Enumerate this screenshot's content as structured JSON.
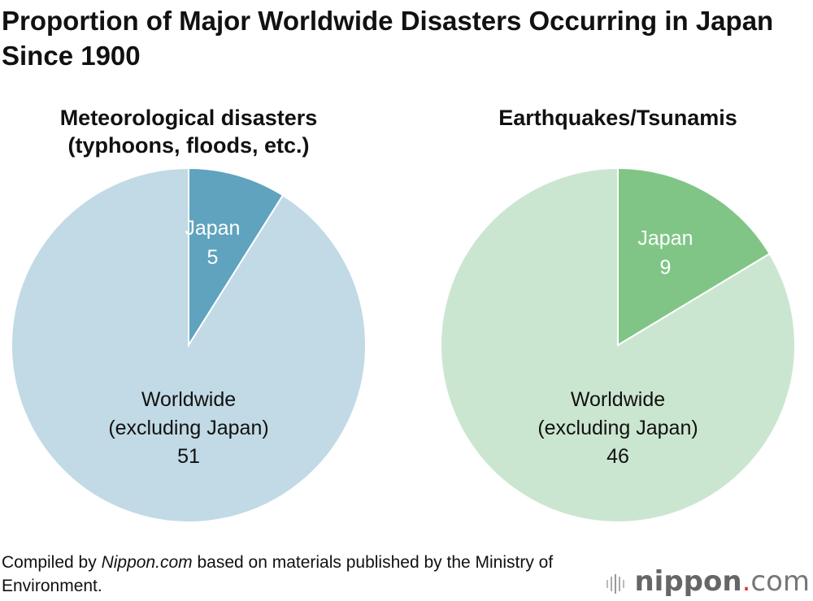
{
  "title": "Proportion of Major Worldwide Disasters Occurring in Japan Since 1900",
  "chart_data": [
    {
      "type": "pie",
      "title": "Meteorological disasters (typhoons, floods, etc.)",
      "slices": [
        {
          "label": "Japan",
          "value": 5,
          "color": "#5fa3be"
        },
        {
          "label": "Worldwide (excluding Japan)",
          "value": 51,
          "color": "#c1dae5"
        }
      ]
    },
    {
      "type": "pie",
      "title": "Earthquakes/Tsunamis",
      "slices": [
        {
          "label": "Japan",
          "value": 9,
          "color": "#80c586"
        },
        {
          "label": "Worldwide (excluding Japan)",
          "value": 46,
          "color": "#cbe6d0"
        }
      ]
    }
  ],
  "labels": {
    "japan": "Japan",
    "world_line1": "Worldwide",
    "world_line2": "(excluding Japan)"
  },
  "footer": {
    "prefix": "Compiled by ",
    "source": "Nippon.com",
    "suffix": " based on materials published by the Ministry of Environment."
  },
  "logo": {
    "main": "nippon",
    "dot": ".",
    "tld": "com"
  }
}
